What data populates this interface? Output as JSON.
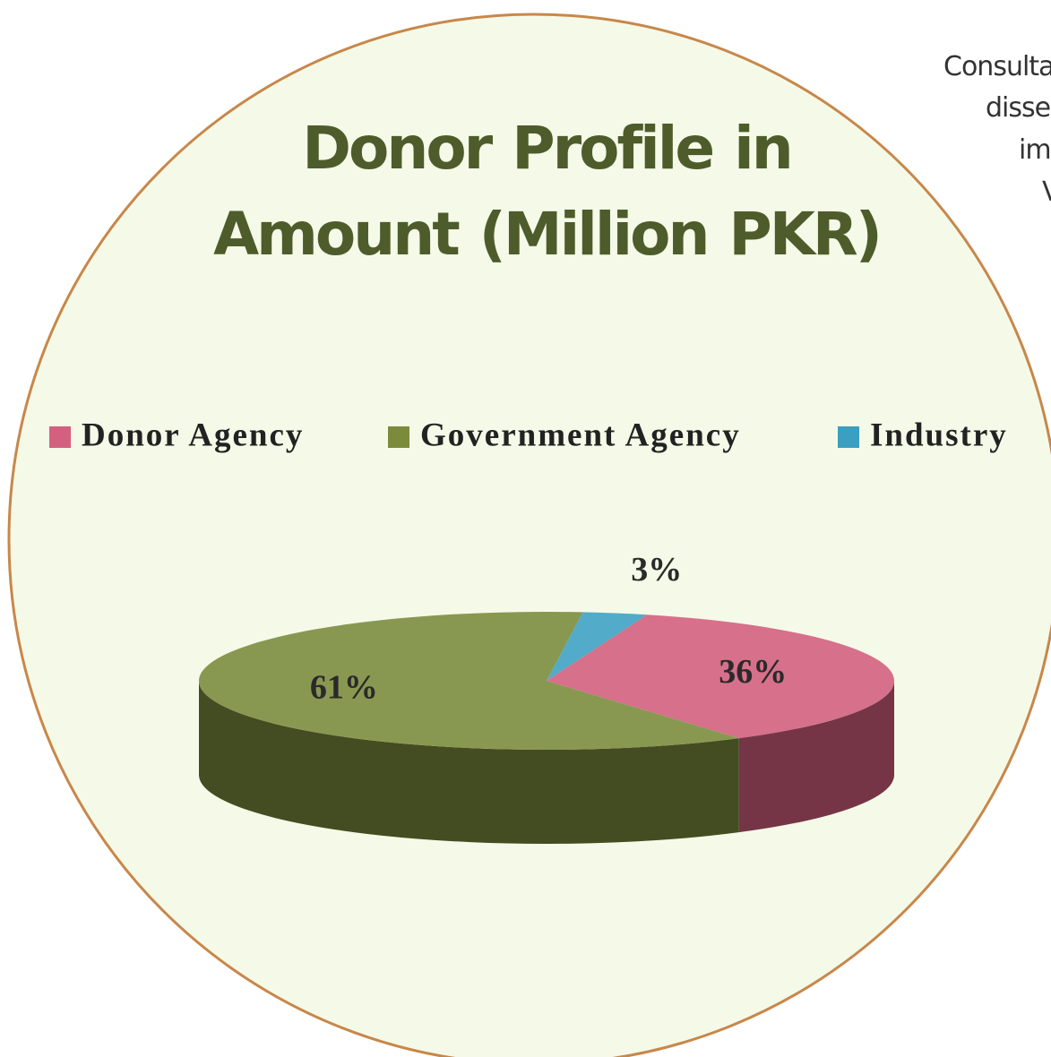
{
  "chart_data": {
    "type": "pie",
    "title": "Donor Profile in Amount (Million PKR)",
    "categories": [
      "Donor Agency",
      "Government Agency",
      "Industry"
    ],
    "values": [
      36,
      61,
      3
    ],
    "value_labels": [
      "36%",
      "61%",
      "3%"
    ],
    "colors": [
      "#d4607f",
      "#7a8c3c",
      "#3a9fc0"
    ],
    "legend": "top"
  },
  "side_text": [
    "Consulta",
    "disse",
    "im",
    "V"
  ]
}
